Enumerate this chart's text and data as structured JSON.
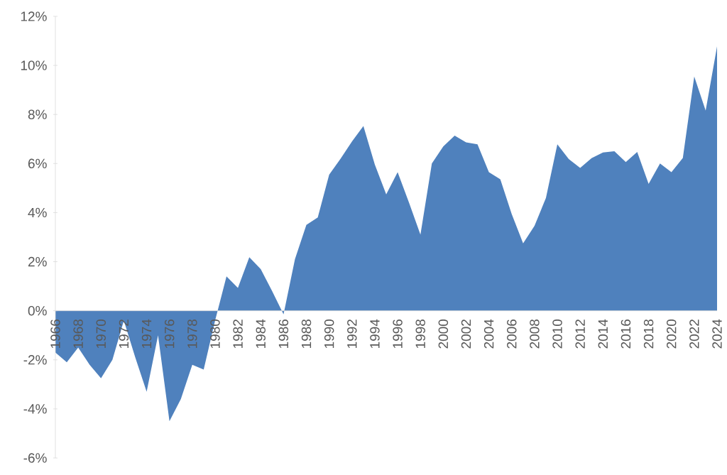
{
  "chart_data": {
    "type": "area",
    "categories": [
      "1966",
      null,
      "1968",
      null,
      "1970",
      null,
      "1972",
      null,
      "1974",
      null,
      "1976",
      null,
      "1978",
      null,
      "1980",
      null,
      "1982",
      null,
      "1984",
      null,
      "1986",
      null,
      "1988",
      null,
      "1990",
      null,
      "1992",
      null,
      "1994",
      null,
      "1996",
      null,
      "1998",
      null,
      "2000",
      null,
      "2002",
      null,
      "2004",
      null,
      "2006",
      null,
      "2008",
      null,
      "2010",
      null,
      "2012",
      null,
      "2014",
      null,
      "2016",
      null,
      "2018",
      null,
      "2020",
      null,
      "2022",
      null,
      "2024"
    ],
    "values": [
      -1.7,
      -2.1,
      -1.5,
      -2.2,
      -2.75,
      -2.0,
      -0.4,
      -1.9,
      -3.3,
      -1.0,
      -4.5,
      -3.6,
      -2.2,
      -2.4,
      -0.4,
      1.4,
      0.93,
      2.18,
      1.7,
      0.8,
      -0.15,
      2.1,
      3.5,
      3.8,
      5.55,
      6.2,
      6.9,
      7.53,
      5.96,
      4.74,
      5.65,
      4.4,
      3.1,
      6.0,
      6.7,
      7.14,
      6.86,
      6.78,
      5.65,
      5.36,
      3.94,
      2.75,
      3.46,
      4.6,
      6.78,
      6.18,
      5.82,
      6.22,
      6.45,
      6.5,
      6.06,
      6.47,
      5.17,
      6.0,
      5.65,
      6.23,
      9.55,
      8.16,
      10.78
    ],
    "color": "#4f81bd",
    "ylim": [
      -6,
      12
    ],
    "yticks": [
      {
        "value": -6,
        "label": "-6%"
      },
      {
        "value": -4,
        "label": "-4%"
      },
      {
        "value": -2,
        "label": "-2%"
      },
      {
        "value": 0,
        "label": "0%"
      },
      {
        "value": 2,
        "label": "2%"
      },
      {
        "value": 4,
        "label": "4%"
      },
      {
        "value": 6,
        "label": "6%"
      },
      {
        "value": 8,
        "label": "8%"
      },
      {
        "value": 10,
        "label": "10%"
      },
      {
        "value": 12,
        "label": "12%"
      }
    ]
  }
}
